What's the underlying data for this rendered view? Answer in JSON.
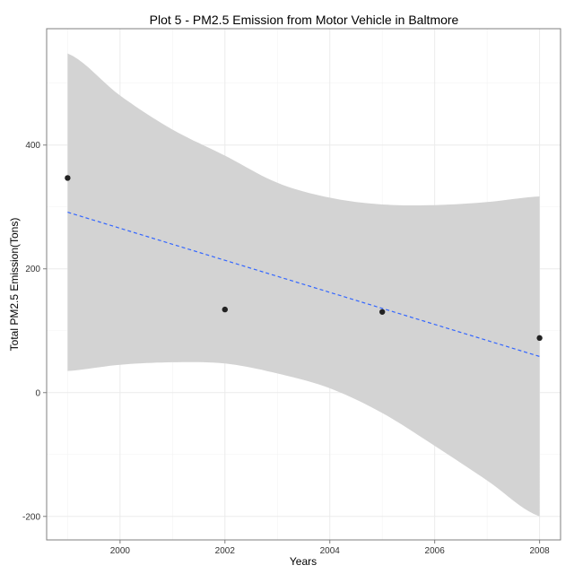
{
  "chart_data": {
    "type": "scatter",
    "title": "Plot 5 - PM2.5 Emission from Motor Vehicle in Baltmore",
    "xlabel": "Years",
    "ylabel": "Total PM2.5 Emission(Tons)",
    "xlim": [
      1998.6,
      2008.4
    ],
    "ylim": [
      -238,
      588
    ],
    "x_ticks": [
      2000,
      2002,
      2004,
      2006,
      2008
    ],
    "y_ticks": [
      -200,
      0,
      200,
      400
    ],
    "grid": true,
    "legend": "none",
    "points": [
      {
        "x": 1999,
        "y": 346.8
      },
      {
        "x": 2002,
        "y": 134.3
      },
      {
        "x": 2005,
        "y": 130.4
      },
      {
        "x": 2008,
        "y": 88.3
      }
    ],
    "trend": {
      "method": "linear fit",
      "x": [
        1999,
        2008
      ],
      "y": [
        291.5,
        58.4
      ],
      "color": "#3366ff",
      "style": "dashed"
    },
    "confidence_band": {
      "x": [
        1999,
        2000,
        2001,
        2002,
        2003,
        2004,
        2005,
        2006,
        2007,
        2008
      ],
      "lower": [
        35,
        45,
        49,
        47,
        31,
        7,
        -33,
        -86,
        -142,
        -200
      ],
      "upper": [
        548,
        480,
        425,
        383,
        339,
        315,
        304,
        303,
        308,
        317
      ],
      "color": "#d3d3d3"
    },
    "colors": {
      "points": "#222222",
      "grid": "#ebebeb",
      "panel_border": "#7f7f7f",
      "background": "#ffffff"
    }
  }
}
